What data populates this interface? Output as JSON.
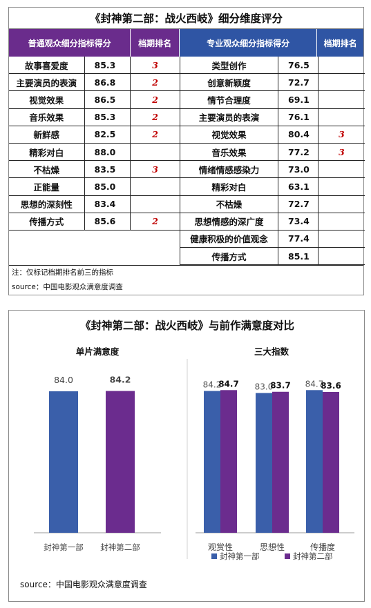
{
  "table": {
    "title": "《封神第二部：战火西岐》细分维度评分",
    "headers": {
      "general": "普通观众细分指标得分",
      "general_rank": "档期排名",
      "professional": "专业观众细分指标得分",
      "professional_rank": "档期排名"
    },
    "general_rows": [
      {
        "name": "故事喜爱度",
        "score": "85.3",
        "rank": "3"
      },
      {
        "name": "主要演员的表演",
        "score": "86.8",
        "rank": "2"
      },
      {
        "name": "视觉效果",
        "score": "86.5",
        "rank": "2"
      },
      {
        "name": "音乐效果",
        "score": "85.3",
        "rank": "2"
      },
      {
        "name": "新鲜感",
        "score": "82.5",
        "rank": "2"
      },
      {
        "name": "精彩对白",
        "score": "88.0",
        "rank": ""
      },
      {
        "name": "不枯燥",
        "score": "83.5",
        "rank": "3"
      },
      {
        "name": "正能量",
        "score": "85.0",
        "rank": ""
      },
      {
        "name": "思想的深刻性",
        "score": "83.4",
        "rank": ""
      },
      {
        "name": "传播方式",
        "score": "85.6",
        "rank": "2"
      }
    ],
    "professional_rows": [
      {
        "name": "类型创作",
        "score": "76.5",
        "rank": ""
      },
      {
        "name": "创意新颖度",
        "score": "72.7",
        "rank": ""
      },
      {
        "name": "情节合理度",
        "score": "69.1",
        "rank": ""
      },
      {
        "name": "主要演员的表演",
        "score": "76.1",
        "rank": ""
      },
      {
        "name": "视觉效果",
        "score": "80.4",
        "rank": "3"
      },
      {
        "name": "音乐效果",
        "score": "77.2",
        "rank": "3"
      },
      {
        "name": "情绪情感感染力",
        "score": "73.0",
        "rank": ""
      },
      {
        "name": "精彩对白",
        "score": "63.1",
        "rank": ""
      },
      {
        "name": "不枯燥",
        "score": "72.7",
        "rank": ""
      },
      {
        "name": "思想情感的深广度",
        "score": "73.4",
        "rank": ""
      },
      {
        "name": "健康积极的价值观念",
        "score": "77.4",
        "rank": ""
      },
      {
        "name": "传播方式",
        "score": "85.1",
        "rank": ""
      }
    ],
    "note": "注：仅标记档期排名前三的指标",
    "source": "source：中国电影观众满意度调查"
  },
  "colors": {
    "purple": "#6a2c8c",
    "blue": "#2f55a4",
    "series1": "#3a5faa",
    "series2": "#6b2c8e",
    "rank_red": "#c00000"
  },
  "chart_title": "《封神第二部：战火西岐》与前作满意度对比",
  "chart_source": "source：中国电影观众满意度调查",
  "chart_data": [
    {
      "type": "bar",
      "title": "单片满意度",
      "categories": [
        "封神第一部",
        "封神第二部"
      ],
      "series": [
        {
          "name": "单片满意度",
          "values": [
            84.0,
            84.2
          ]
        }
      ],
      "data_labels": [
        "84.0",
        "84.2"
      ],
      "grid": false
    },
    {
      "type": "bar",
      "title": "三大指数",
      "categories": [
        "观赏性",
        "思想性",
        "传播度"
      ],
      "series": [
        {
          "name": "封神第一部",
          "values": [
            84.2,
            83.0,
            84.7
          ]
        },
        {
          "name": "封神第二部",
          "values": [
            84.7,
            83.7,
            83.6
          ]
        }
      ],
      "legend": "bottom",
      "grid": false
    }
  ]
}
